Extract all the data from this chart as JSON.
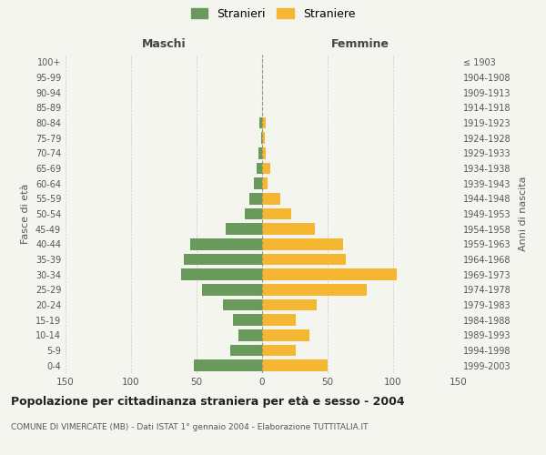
{
  "age_groups": [
    "0-4",
    "5-9",
    "10-14",
    "15-19",
    "20-24",
    "25-29",
    "30-34",
    "35-39",
    "40-44",
    "45-49",
    "50-54",
    "55-59",
    "60-64",
    "65-69",
    "70-74",
    "75-79",
    "80-84",
    "85-89",
    "90-94",
    "95-99",
    "100+"
  ],
  "birth_years": [
    "1999-2003",
    "1994-1998",
    "1989-1993",
    "1984-1988",
    "1979-1983",
    "1974-1978",
    "1969-1973",
    "1964-1968",
    "1959-1963",
    "1954-1958",
    "1949-1953",
    "1944-1948",
    "1939-1943",
    "1934-1938",
    "1929-1933",
    "1924-1928",
    "1919-1923",
    "1914-1918",
    "1909-1913",
    "1904-1908",
    "≤ 1903"
  ],
  "males": [
    52,
    24,
    18,
    22,
    30,
    46,
    62,
    60,
    55,
    28,
    13,
    10,
    6,
    4,
    3,
    1,
    2,
    0,
    0,
    0,
    0
  ],
  "females": [
    50,
    26,
    36,
    26,
    42,
    80,
    103,
    64,
    62,
    40,
    22,
    14,
    4,
    6,
    3,
    2,
    3,
    0,
    0,
    0,
    0
  ],
  "male_color": "#6a9a5b",
  "female_color": "#f5b731",
  "title": "Popolazione per cittadinanza straniera per età e sesso - 2004",
  "subtitle": "COMUNE DI VIMERCATE (MB) - Dati ISTAT 1° gennaio 2004 - Elaborazione TUTTITALIA.IT",
  "legend_male": "Stranieri",
  "legend_female": "Straniere",
  "xlabel_left": "Maschi",
  "xlabel_right": "Femmine",
  "ylabel_left": "Fasce di età",
  "ylabel_right": "Anni di nascita",
  "xlim": 150,
  "background_color": "#f5f5f0"
}
